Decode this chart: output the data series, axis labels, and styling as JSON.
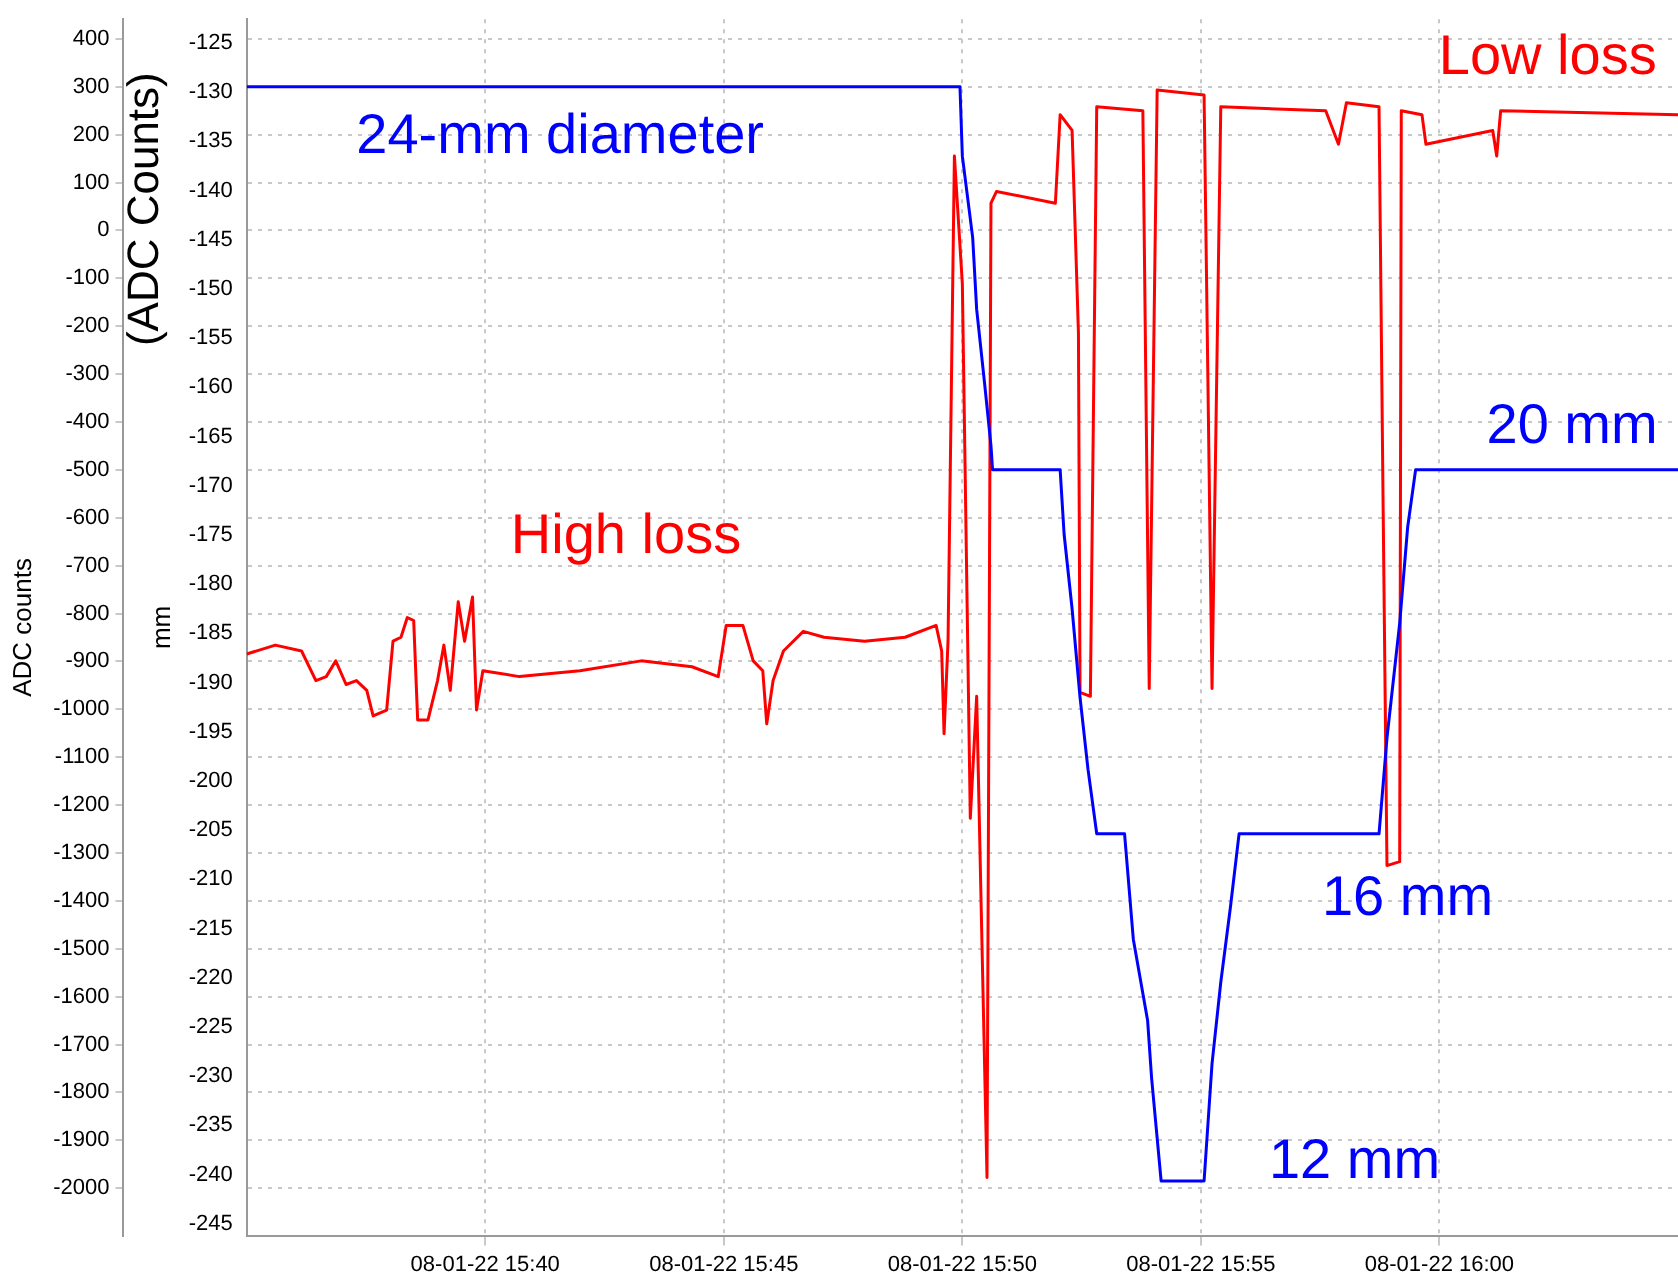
{
  "chart_data": {
    "type": "line",
    "ylabel": "ADC counts",
    "y2label": "mm",
    "xlim": [
      "--08-01T15:35",
      "--08-01T16:05"
    ],
    "xticks": [
      {
        "value": "--08-01T15:40",
        "label": "08-01-22 15:40"
      },
      {
        "value": "--08-01T15:45",
        "label": "08-01-22 15:45"
      },
      {
        "value": "--08-01T15:50",
        "label": "08-01-22 15:50"
      },
      {
        "value": "--08-01T15:55",
        "label": "08-01-22 15:55"
      },
      {
        "value": "--08-01T16:00",
        "label": "08-01-22 16:00"
      }
    ],
    "y2lim": [
      -246.2,
      -122.6
    ],
    "y2ticks": [
      -125,
      -130,
      -135,
      -140,
      -145,
      -150,
      -155,
      -160,
      -165,
      -170,
      -175,
      -180,
      -185,
      -190,
      -195,
      -200,
      -205,
      -210,
      -215,
      -220,
      -225,
      -230,
      -235,
      -240,
      -245
    ],
    "ylim": [
      -2099,
      441
    ],
    "yticks": [
      400,
      300,
      200,
      100,
      0,
      -100,
      -200,
      -300,
      -400,
      -500,
      -600,
      -700,
      -800,
      -900,
      -1000,
      -1100,
      -1200,
      -1300,
      -1400,
      -1500,
      -1600,
      -1700,
      -1800,
      -1900,
      -2000
    ],
    "grid": true,
    "legend": false,
    "series": [
      {
        "color": "#0000ff",
        "x": [
          "--08-01T15:35:00",
          "--08-01T15:49:57",
          "--08-01T15:50:00",
          "--08-01T15:50:13",
          "--08-01T15:50:18",
          "--08-01T15:50:28",
          "--08-01T15:50:36",
          "--08-01T15:50:38",
          "--08-01T15:52:03",
          "--08-01T15:52:08",
          "--08-01T15:52:18",
          "--08-01T15:52:28",
          "--08-01T15:52:38",
          "--08-01T15:52:49",
          "--08-01T15:53:24",
          "--08-01T15:53:35",
          "--08-01T15:53:53",
          "--08-01T15:53:58",
          "--08-01T15:54:10",
          "--08-01T15:55:04",
          "--08-01T15:55:14",
          "--08-01T15:55:25",
          "--08-01T15:55:37",
          "--08-01T15:55:48",
          "--08-01T15:58:44",
          "--08-01T15:58:54",
          "--08-01T15:59:10",
          "--08-01T15:59:20",
          "--08-01T15:59:30",
          "--08-01T16:05:00"
        ],
        "values": [
          300,
          300,
          155,
          -15,
          -165,
          -320,
          -450,
          -500,
          -500,
          -635,
          -790,
          -975,
          -1125,
          -1260,
          -1260,
          -1480,
          -1650,
          -1770,
          -1985,
          -1985,
          -1740,
          -1570,
          -1415,
          -1260,
          -1260,
          -1060,
          -820,
          -620,
          -500,
          -500
        ]
      },
      {
        "color": "#ff0000",
        "axis": "y2",
        "x": [
          "--08-01T15:35:00",
          "--08-01T15:35:36",
          "--08-01T15:36:09",
          "--08-01T15:36:27",
          "--08-01T15:36:40",
          "--08-01T15:36:52",
          "--08-01T15:37:05",
          "--08-01T15:37:18",
          "--08-01T15:37:31",
          "--08-01T15:37:39",
          "--08-01T15:37:56",
          "--08-01T15:38:04",
          "--08-01T15:38:14",
          "--08-01T15:38:22",
          "--08-01T15:38:30",
          "--08-01T15:38:35",
          "--08-01T15:38:48",
          "--08-01T15:39:00",
          "--08-01T15:39:08",
          "--08-01T15:39:16",
          "--08-01T15:39:26",
          "--08-01T15:39:34",
          "--08-01T15:39:44",
          "--08-01T15:39:49",
          "--08-01T15:39:57",
          "--08-01T15:40:43",
          "--08-01T15:41:59",
          "--08-01T15:43:16",
          "--08-01T15:44:20",
          "--08-01T15:44:53",
          "--08-01T15:45:03",
          "--08-01T15:45:24",
          "--08-01T15:45:37",
          "--08-01T15:45:49",
          "--08-01T15:45:54",
          "--08-01T15:46:02",
          "--08-01T15:46:15",
          "--08-01T15:46:40",
          "--08-01T15:47:06",
          "--08-01T15:47:57",
          "--08-01T15:48:48",
          "--08-01T15:49:27",
          "--08-01T15:49:34",
          "--08-01T15:49:37",
          "--08-01T15:49:42",
          "--08-01T15:49:50",
          "--08-01T15:50:00",
          "--08-01T15:50:10",
          "--08-01T15:50:18",
          "--08-01T15:50:31",
          "--08-01T15:50:36",
          "--08-01T15:50:43",
          "--08-01T15:51:57",
          "--08-01T15:52:03",
          "--08-01T15:52:18",
          "--08-01T15:52:26",
          "--08-01T15:52:28",
          "--08-01T15:52:41",
          "--08-01T15:52:49",
          "--08-01T15:53:47",
          "--08-01T15:53:55",
          "--08-01T15:54:05",
          "--08-01T15:55:04",
          "--08-01T15:55:14",
          "--08-01T15:55:25",
          "--08-01T15:57:37",
          "--08-01T15:57:53",
          "--08-01T15:58:03",
          "--08-01T15:58:44",
          "--08-01T15:58:49",
          "--08-01T15:58:54",
          "--08-01T15:59:10",
          "--08-01T15:59:12",
          "--08-01T15:59:38",
          "--08-01T15:59:43",
          "--08-01T16:01:07",
          "--08-01T16:01:12",
          "--08-01T16:01:17",
          "--08-01T16:05:00"
        ],
        "values": [
          -187.1,
          -186.2,
          -186.8,
          -189.8,
          -189.4,
          -187.8,
          -190.2,
          -189.8,
          -190.8,
          -193.4,
          -192.8,
          -185.8,
          -185.4,
          -183.4,
          -183.7,
          -193.8,
          -193.8,
          -189.8,
          -186.2,
          -190.8,
          -181.8,
          -185.8,
          -181.3,
          -192.8,
          -188.8,
          -189.4,
          -188.8,
          -187.8,
          -188.4,
          -189.4,
          -184.2,
          -184.2,
          -187.8,
          -188.8,
          -194.2,
          -189.8,
          -186.8,
          -184.8,
          -185.4,
          -185.8,
          -185.4,
          -184.2,
          -186.8,
          -195.2,
          -185.8,
          -136.5,
          -149.5,
          -203.8,
          -191.4,
          -240.3,
          -141.3,
          -140.1,
          -141.3,
          -132.3,
          -133.9,
          -154.5,
          -191.0,
          -191.4,
          -131.5,
          -131.9,
          -190.6,
          -129.8,
          -130.3,
          -190.6,
          -131.5,
          -131.9,
          -135.3,
          -131.1,
          -131.5,
          -170.9,
          -208.6,
          -208.2,
          -131.9,
          -132.3,
          -135.3,
          -133.9,
          -136.5,
          -131.9,
          -132.3
        ]
      }
    ],
    "annotations": [
      "24-mm diameter",
      "High loss",
      "Low loss",
      "20 mm",
      "16 mm",
      "12 mm",
      "(ADC Counts)"
    ]
  }
}
